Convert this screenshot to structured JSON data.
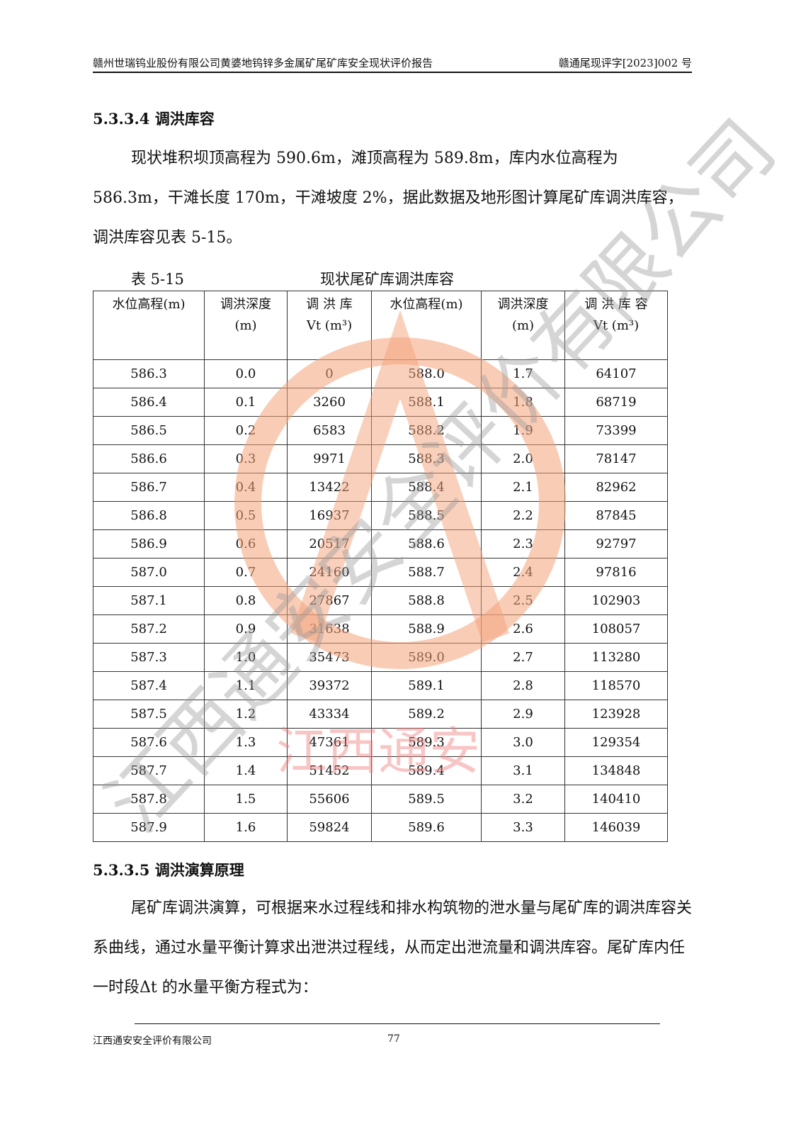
{
  "header": {
    "left": "赣州世瑞钨业股份有限公司黄婆地钨锌多金属矿尾矿库安全现状评价报告",
    "right": "赣通尾现评字[2023]002 号"
  },
  "section1": {
    "title": "5.3.3.4 调洪库容",
    "paragraph": "现状堆积坝顶高程为 590.6m，滩顶高程为 589.8m，库内水位高程为 586.3m，干滩长度 170m，干滩坡度 2%，据此数据及地形图计算尾矿库调洪库容，调洪库容见表 5-15。"
  },
  "table": {
    "number": "表 5-15",
    "title": "现状尾矿库调洪库容",
    "headers": [
      [
        "水位高程(m)"
      ],
      [
        "调洪深度",
        "(m)"
      ],
      [
        "调 洪 库",
        "Vt (m³)"
      ],
      [
        "水位高程(m)"
      ],
      [
        "调洪深度",
        "(m)"
      ],
      [
        "调 洪 库 容",
        "Vt (m³)"
      ]
    ],
    "rows": [
      [
        "586.3",
        "0.0",
        "0",
        "588.0",
        "1.7",
        "64107"
      ],
      [
        "586.4",
        "0.1",
        "3260",
        "588.1",
        "1.8",
        "68719"
      ],
      [
        "586.5",
        "0.2",
        "6583",
        "588.2",
        "1.9",
        "73399"
      ],
      [
        "586.6",
        "0.3",
        "9971",
        "588.3",
        "2.0",
        "78147"
      ],
      [
        "586.7",
        "0.4",
        "13422",
        "588.4",
        "2.1",
        "82962"
      ],
      [
        "586.8",
        "0.5",
        "16937",
        "588.5",
        "2.2",
        "87845"
      ],
      [
        "586.9",
        "0.6",
        "20517",
        "588.6",
        "2.3",
        "92797"
      ],
      [
        "587.0",
        "0.7",
        "24160",
        "588.7",
        "2.4",
        "97816"
      ],
      [
        "587.1",
        "0.8",
        "27867",
        "588.8",
        "2.5",
        "102903"
      ],
      [
        "587.2",
        "0.9",
        "31638",
        "588.9",
        "2.6",
        "108057"
      ],
      [
        "587.3",
        "1.0",
        "35473",
        "589.0",
        "2.7",
        "113280"
      ],
      [
        "587.4",
        "1.1",
        "39372",
        "589.1",
        "2.8",
        "118570"
      ],
      [
        "587.5",
        "1.2",
        "43334",
        "589.2",
        "2.9",
        "123928"
      ],
      [
        "587.6",
        "1.3",
        "47361",
        "589.3",
        "3.0",
        "129354"
      ],
      [
        "587.7",
        "1.4",
        "51452",
        "589.4",
        "3.1",
        "134848"
      ],
      [
        "587.8",
        "1.5",
        "55606",
        "589.5",
        "3.2",
        "140410"
      ],
      [
        "587.9",
        "1.6",
        "59824",
        "589.6",
        "3.3",
        "146039"
      ]
    ]
  },
  "section2": {
    "title": "5.3.3.5 调洪演算原理",
    "paragraph": "尾矿库调洪演算，可根据来水过程线和排水构筑物的泄水量与尾矿库的调洪库容关系曲线，通过水量平衡计算求出泄洪过程线，从而定出泄流量和调洪库容。尾矿库内任一时段Δt 的水量平衡方程式为："
  },
  "footer": {
    "company": "江西通安安全评价有限公司",
    "page": "77"
  },
  "watermark": {
    "diagonal_text": "江西通安安全评价有限公司",
    "seal_text": "江西通安",
    "logo_letters": "A",
    "colors": {
      "circle": "#f4a27a",
      "diagonal": "#999999",
      "seal": "#f08080",
      "logo_blue": "#8ecfe8"
    }
  }
}
